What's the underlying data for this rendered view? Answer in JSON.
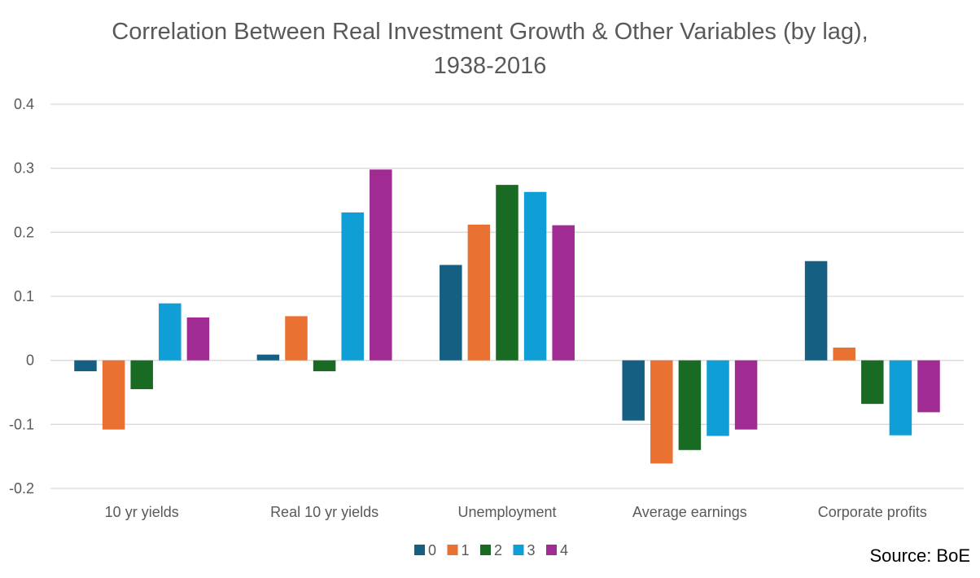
{
  "chart_data": {
    "type": "bar",
    "title": "Correlation Between Real Investment Growth & Other Variables (by lag), 1938-2016",
    "xlabel": "",
    "ylabel": "",
    "ylim": [
      -0.2,
      0.4
    ],
    "yticks": [
      "0.4",
      "0.3",
      "0.2",
      "0.1",
      "0",
      "-0.1",
      "-0.2"
    ],
    "ytick_values": [
      0.4,
      0.3,
      0.2,
      0.1,
      0,
      -0.1,
      -0.2
    ],
    "grid": true,
    "legend_position": "bottom",
    "categories": [
      "10 yr yields",
      "Real 10 yr yields",
      "Unemployment",
      "Average earnings",
      "Corporate profits"
    ],
    "series": [
      {
        "name": "0",
        "color": "#156082",
        "values": [
          -0.017,
          0.009,
          0.149,
          -0.094,
          0.155
        ]
      },
      {
        "name": "1",
        "color": "#E97132",
        "values": [
          -0.108,
          0.069,
          0.212,
          -0.161,
          0.02
        ]
      },
      {
        "name": "2",
        "color": "#196B24",
        "values": [
          -0.045,
          -0.017,
          0.274,
          -0.14,
          -0.068
        ]
      },
      {
        "name": "3",
        "color": "#0F9ED5",
        "values": [
          0.089,
          0.231,
          0.263,
          -0.118,
          -0.117
        ]
      },
      {
        "name": "4",
        "color": "#A02B93",
        "values": [
          0.067,
          0.298,
          0.211,
          -0.108,
          -0.081
        ]
      }
    ]
  },
  "source": "Source: BoE"
}
